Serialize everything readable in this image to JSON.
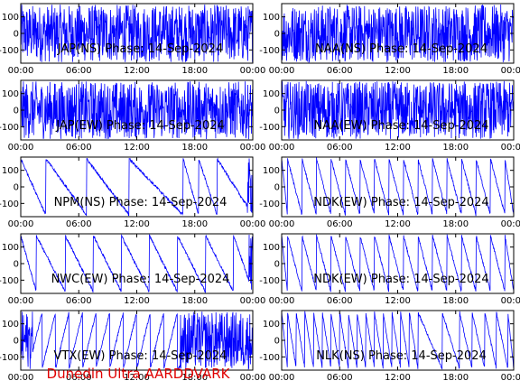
{
  "footer_text": "Dunedin Ultra AARDDVARK",
  "colors": {
    "trace": "#0000ff",
    "axes": "#000000",
    "footer": "#e00000"
  },
  "chart_data": [
    {
      "type": "line",
      "title": "JAP(NS) Phase: 14-Sep-2024",
      "xlim": [
        0,
        24
      ],
      "ylim": [
        -180,
        180
      ],
      "x_ticks": [
        "00:00",
        "06:00",
        "12:00",
        "18:00",
        "00:00"
      ],
      "y_ticks": [
        100,
        0,
        -100
      ],
      "pattern": "noisy",
      "noise_segments": [
        [
          0.7,
          1.1
        ],
        [
          6.6,
          24
        ]
      ]
    },
    {
      "type": "line",
      "title": "NAA(NS) Phase: 14-Sep-2024",
      "xlim": [
        0,
        24
      ],
      "ylim": [
        -180,
        180
      ],
      "x_ticks": [
        "00:00",
        "06:00",
        "12:00",
        "18:00",
        "00:00"
      ],
      "y_ticks": [
        100,
        0,
        -100
      ],
      "pattern": "noisy",
      "noise_segments": [
        [
          0,
          2.6
        ],
        [
          11.1,
          20.8
        ]
      ]
    },
    {
      "type": "line",
      "title": "JAP(EW) Phase: 14-Sep-2024",
      "xlim": [
        0,
        24
      ],
      "ylim": [
        -180,
        180
      ],
      "x_ticks": [
        "00:00",
        "06:00",
        "12:00",
        "18:00",
        "00:00"
      ],
      "y_ticks": [
        100,
        0,
        -100
      ],
      "pattern": "noisy",
      "noise_segments": [
        [
          0,
          24
        ]
      ]
    },
    {
      "type": "line",
      "title": "NAA(EW) Phase: 14-Sep-2024",
      "xlim": [
        0,
        24
      ],
      "ylim": [
        -180,
        180
      ],
      "x_ticks": [
        "00:00",
        "06:00",
        "12:00",
        "18:00",
        "00:00"
      ],
      "y_ticks": [
        100,
        0,
        -100
      ],
      "pattern": "noisy",
      "noise_segments": [
        [
          0,
          3.2
        ],
        [
          10.9,
          22.2
        ]
      ]
    },
    {
      "type": "line",
      "title": "NPM(NS) Phase: 14-Sep-2024",
      "xlim": [
        0,
        24
      ],
      "ylim": [
        -180,
        180
      ],
      "x_ticks": [
        "00:00",
        "06:00",
        "12:00",
        "18:00",
        "00:00"
      ],
      "y_ticks": [
        100,
        0,
        -100
      ],
      "pattern": "sawtooth",
      "slope": -1,
      "wrap_times": [
        2.6,
        6.8,
        11.2,
        16.8,
        18.4,
        20.3
      ],
      "noise_segments": [
        [
          23.4,
          24
        ]
      ]
    },
    {
      "type": "line",
      "title": "NDK(EW) Phase: 14-Sep-2024",
      "xlim": [
        0,
        24
      ],
      "ylim": [
        -180,
        180
      ],
      "x_ticks": [
        "00:00",
        "06:00",
        "12:00",
        "18:00",
        "00:00"
      ],
      "y_ticks": [
        100,
        0,
        -100
      ],
      "pattern": "sawtooth",
      "slope": -1,
      "wrap_times": [
        0.6,
        2.1,
        3.6,
        5.1,
        6.6,
        8.1,
        9.6,
        11.1,
        12.6,
        14.1,
        15.6,
        17.1,
        18.6,
        20.1,
        21.6,
        23.1
      ],
      "noise_segments": []
    },
    {
      "type": "line",
      "title": "NWC(EW) Phase: 14-Sep-2024",
      "xlim": [
        0,
        24
      ],
      "ylim": [
        -180,
        180
      ],
      "x_ticks": [
        "00:00",
        "06:00",
        "12:00",
        "18:00",
        "00:00"
      ],
      "y_ticks": [
        100,
        0,
        -100
      ],
      "pattern": "sawtooth",
      "slope": -1,
      "wrap_times": [
        1.6,
        4.6,
        7.5,
        10.4,
        13.3,
        16.2,
        19.1,
        22.0
      ],
      "noise_segments": [
        [
          23.6,
          24
        ]
      ]
    },
    {
      "type": "line",
      "title": "NDK(EW) Phase: 14-Sep-2024",
      "xlim": [
        0,
        24
      ],
      "ylim": [
        -180,
        180
      ],
      "x_ticks": [
        "00:00",
        "06:00",
        "12:00",
        "18:00",
        "00:00"
      ],
      "y_ticks": [
        100,
        0,
        -100
      ],
      "pattern": "sawtooth",
      "slope": -1,
      "wrap_times": [
        0.6,
        2.1,
        3.6,
        5.1,
        6.6,
        8.1,
        9.6,
        11.1,
        12.6,
        14.1,
        15.6,
        17.1,
        18.6,
        20.1,
        21.6,
        23.1
      ],
      "noise_segments": []
    },
    {
      "type": "line",
      "title": "VTX(EW) Phase: 14-Sep-2024",
      "xlim": [
        0,
        24
      ],
      "ylim": [
        -180,
        180
      ],
      "x_ticks": [
        "00:00",
        "06:00",
        "12:00",
        "18:00",
        "00:00"
      ],
      "y_ticks": [
        100,
        0,
        -100
      ],
      "pattern": "sawtooth",
      "slope": 1,
      "wrap_times": [
        0.8,
        2.2,
        3.6,
        5.0,
        6.4,
        7.8,
        9.2,
        10.6,
        12.0,
        13.4,
        14.8,
        16.2
      ],
      "noise_segments": [
        [
          0,
          1.2
        ],
        [
          16.5,
          24
        ]
      ]
    },
    {
      "type": "line",
      "title": "NLK(NS) Phase: 14-Sep-2024",
      "xlim": [
        0,
        24
      ],
      "ylim": [
        -180,
        180
      ],
      "x_ticks": [
        "00:00",
        "06:00",
        "12:00",
        "18:00",
        "00:00"
      ],
      "y_ticks": [
        100,
        0,
        -100
      ],
      "pattern": "sawtooth",
      "slope": -1,
      "wrap_times": [
        0.6,
        1.5,
        2.4,
        3.3,
        4.2,
        5.1,
        6.0,
        6.9,
        7.8,
        8.7,
        9.6,
        10.5,
        11.4,
        12.3,
        13.2,
        14.1,
        16.6,
        18.4,
        19.7,
        21.0,
        22.2,
        23.4
      ],
      "noise_segments": []
    }
  ]
}
